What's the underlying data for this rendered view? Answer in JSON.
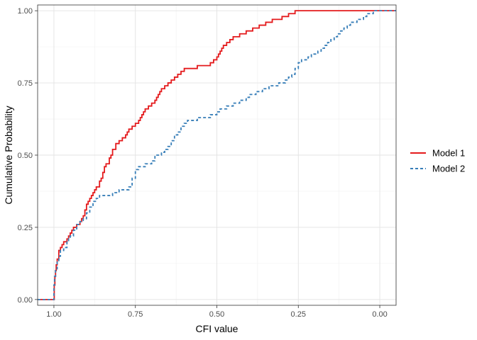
{
  "chart_data": {
    "type": "line",
    "subtype": "step",
    "title": "",
    "xlabel": "CFI value",
    "ylabel": "Cumulative Probability",
    "x_reversed": true,
    "xlim": [
      1.05,
      -0.05
    ],
    "ylim": [
      -0.02,
      1.02
    ],
    "x_ticks": [
      1.0,
      0.75,
      0.5,
      0.25,
      0.0
    ],
    "x_tick_labels": [
      "1.00",
      "0.75",
      "0.50",
      "0.25",
      "0.00"
    ],
    "y_ticks": [
      0.0,
      0.25,
      0.5,
      0.75,
      1.0
    ],
    "y_tick_labels": [
      "0.00",
      "0.25",
      "0.50",
      "0.75",
      "1.00"
    ],
    "grid": true,
    "legend_position": "right",
    "series": [
      {
        "name": "Model 1",
        "color": "#E41A1C",
        "dash": "solid",
        "x": [
          1.05,
          0.999,
          0.997,
          0.995,
          0.993,
          0.99,
          0.985,
          0.98,
          0.975,
          0.97,
          0.96,
          0.955,
          0.95,
          0.945,
          0.94,
          0.93,
          0.92,
          0.915,
          0.91,
          0.905,
          0.9,
          0.895,
          0.89,
          0.885,
          0.88,
          0.875,
          0.87,
          0.86,
          0.855,
          0.85,
          0.845,
          0.84,
          0.83,
          0.825,
          0.82,
          0.81,
          0.8,
          0.79,
          0.78,
          0.775,
          0.77,
          0.76,
          0.75,
          0.74,
          0.735,
          0.73,
          0.725,
          0.72,
          0.71,
          0.7,
          0.69,
          0.685,
          0.68,
          0.675,
          0.67,
          0.66,
          0.65,
          0.64,
          0.63,
          0.62,
          0.61,
          0.6,
          0.56,
          0.52,
          0.51,
          0.5,
          0.495,
          0.49,
          0.485,
          0.48,
          0.47,
          0.46,
          0.45,
          0.43,
          0.41,
          0.39,
          0.37,
          0.35,
          0.33,
          0.3,
          0.28,
          0.26,
          0.22,
          0.2,
          0.18,
          0.1,
          0.07,
          0.06,
          0.05,
          0.04,
          0.03,
          0.02,
          0.01,
          -0.05
        ],
        "y": [
          0.0,
          0.05,
          0.08,
          0.1,
          0.12,
          0.14,
          0.17,
          0.18,
          0.19,
          0.2,
          0.21,
          0.22,
          0.23,
          0.24,
          0.25,
          0.26,
          0.27,
          0.28,
          0.29,
          0.31,
          0.33,
          0.34,
          0.35,
          0.36,
          0.37,
          0.38,
          0.39,
          0.41,
          0.42,
          0.44,
          0.46,
          0.47,
          0.49,
          0.5,
          0.52,
          0.54,
          0.55,
          0.56,
          0.57,
          0.58,
          0.59,
          0.6,
          0.61,
          0.62,
          0.63,
          0.64,
          0.65,
          0.66,
          0.67,
          0.68,
          0.69,
          0.7,
          0.71,
          0.72,
          0.73,
          0.74,
          0.75,
          0.76,
          0.77,
          0.78,
          0.79,
          0.8,
          0.81,
          0.82,
          0.83,
          0.84,
          0.85,
          0.86,
          0.87,
          0.88,
          0.89,
          0.9,
          0.91,
          0.92,
          0.93,
          0.94,
          0.95,
          0.96,
          0.97,
          0.98,
          0.99,
          1.0,
          1.0,
          1.0,
          1.0,
          1.0,
          1.0,
          1.0,
          1.0,
          1.0,
          1.0,
          1.0,
          1.0,
          1.0
        ]
      },
      {
        "name": "Model 2",
        "color": "#377EB8",
        "dash": "dashed",
        "x": [
          1.05,
          1.0,
          0.998,
          0.995,
          0.99,
          0.985,
          0.98,
          0.97,
          0.96,
          0.955,
          0.95,
          0.94,
          0.93,
          0.92,
          0.91,
          0.9,
          0.89,
          0.88,
          0.87,
          0.86,
          0.85,
          0.82,
          0.8,
          0.77,
          0.76,
          0.75,
          0.74,
          0.72,
          0.7,
          0.69,
          0.67,
          0.66,
          0.65,
          0.64,
          0.63,
          0.62,
          0.61,
          0.6,
          0.59,
          0.56,
          0.54,
          0.52,
          0.5,
          0.49,
          0.47,
          0.45,
          0.43,
          0.41,
          0.4,
          0.38,
          0.36,
          0.34,
          0.33,
          0.31,
          0.29,
          0.28,
          0.27,
          0.26,
          0.25,
          0.24,
          0.22,
          0.21,
          0.2,
          0.19,
          0.18,
          0.17,
          0.16,
          0.15,
          0.14,
          0.13,
          0.12,
          0.11,
          0.1,
          0.09,
          0.07,
          0.05,
          0.04,
          0.03,
          0.02,
          0.01,
          -0.05
        ],
        "y": [
          0.0,
          0.05,
          0.08,
          0.1,
          0.13,
          0.15,
          0.17,
          0.18,
          0.2,
          0.21,
          0.22,
          0.24,
          0.26,
          0.27,
          0.28,
          0.3,
          0.32,
          0.34,
          0.35,
          0.36,
          0.36,
          0.37,
          0.38,
          0.39,
          0.42,
          0.45,
          0.46,
          0.47,
          0.48,
          0.5,
          0.51,
          0.52,
          0.53,
          0.55,
          0.57,
          0.58,
          0.6,
          0.61,
          0.62,
          0.63,
          0.63,
          0.64,
          0.65,
          0.66,
          0.67,
          0.68,
          0.69,
          0.7,
          0.71,
          0.72,
          0.73,
          0.74,
          0.74,
          0.75,
          0.76,
          0.77,
          0.78,
          0.8,
          0.82,
          0.83,
          0.84,
          0.85,
          0.85,
          0.86,
          0.87,
          0.88,
          0.89,
          0.9,
          0.91,
          0.92,
          0.93,
          0.94,
          0.95,
          0.96,
          0.97,
          0.98,
          0.99,
          0.99,
          1.0,
          1.0,
          1.0
        ]
      }
    ]
  }
}
